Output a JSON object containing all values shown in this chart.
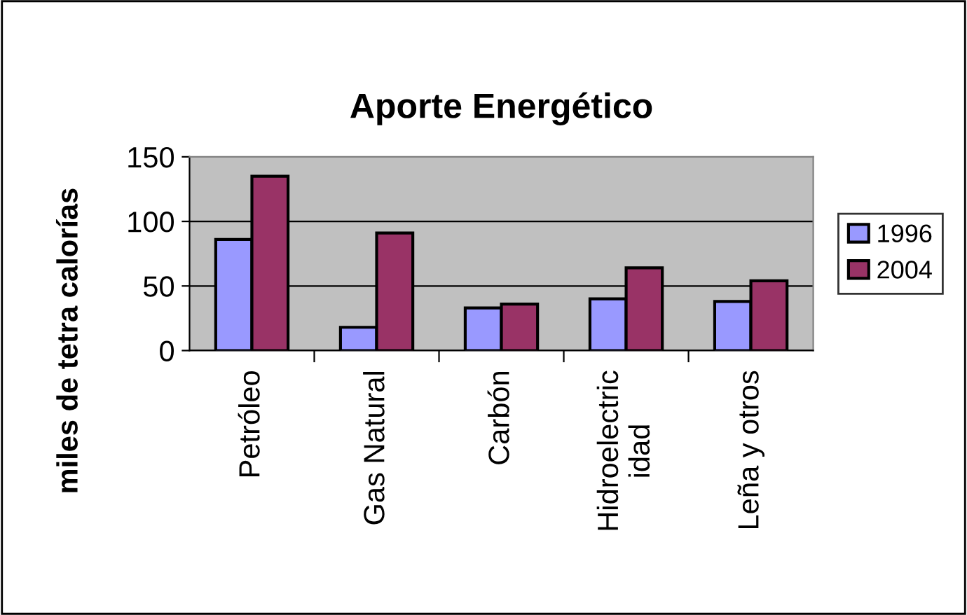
{
  "chart_data": {
    "type": "bar",
    "title": "Aporte Energético",
    "ylabel": "miles de tetra calorías",
    "categories": [
      "Petróleo",
      "Gas Natural",
      "Carbón",
      "Hidroelectric\nidad",
      "Leña y otros"
    ],
    "series": [
      {
        "name": "1996",
        "color": "#9999ff",
        "values": [
          86,
          18,
          33,
          40,
          38
        ]
      },
      {
        "name": "2004",
        "color": "#993366",
        "values": [
          135,
          91,
          36,
          64,
          54
        ]
      }
    ],
    "ylim": [
      0,
      150
    ],
    "yticks": [
      0,
      50,
      100,
      150
    ],
    "grid": "y",
    "legend": "right"
  }
}
